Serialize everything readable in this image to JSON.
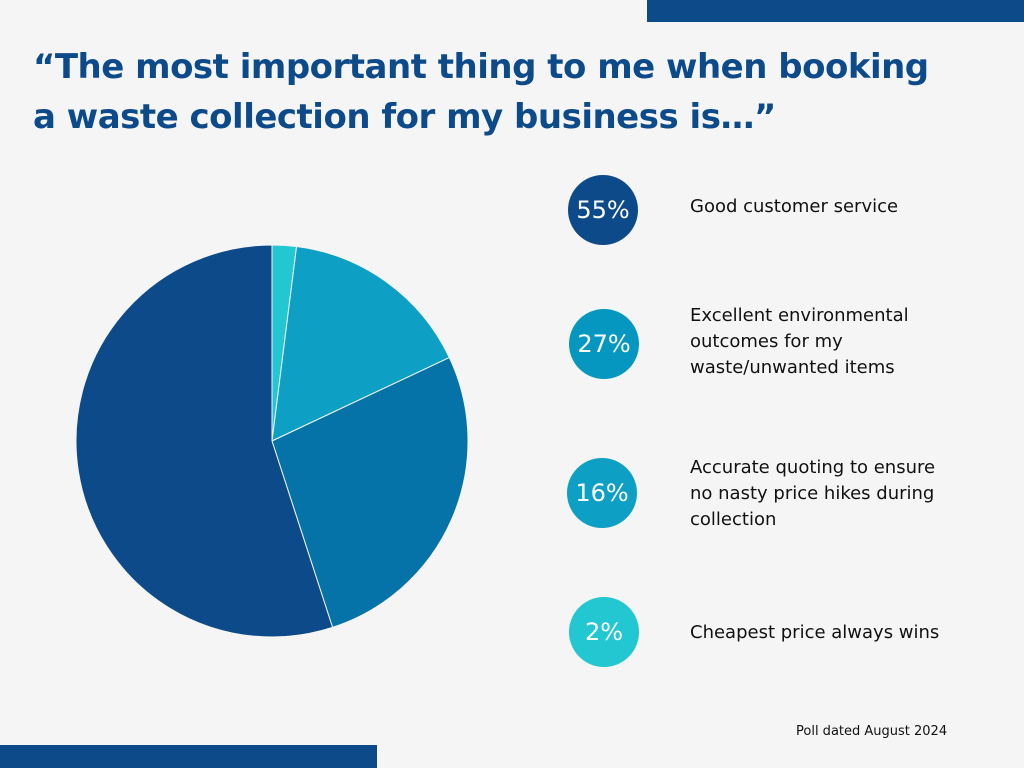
{
  "colors": {
    "title": "#0d4a8a",
    "bars": "#0d4a8a",
    "background": "#f5f5f5"
  },
  "title_lines": [
    "“The most important thing to me when booking",
    "a waste collection for my business is…”"
  ],
  "chart_data": {
    "type": "pie",
    "start_angle_deg": 0,
    "direction": "clockwise",
    "slices": [
      {
        "label": "Cheapest price always wins",
        "value": 2,
        "display_value": "2%",
        "color": "#22c7d1"
      },
      {
        "label": "Accurate quoting to ensure no nasty price hikes during collection",
        "value": 16,
        "display_value": "16%",
        "color": "#0ea0c4"
      },
      {
        "label": "Excellent environmental outcomes for my waste/unwanted items",
        "value": 27,
        "display_value": "27%",
        "color": "#0572a8"
      },
      {
        "label": "Good customer service",
        "value": 55,
        "display_value": "55%",
        "color": "#0d4a8a"
      }
    ]
  },
  "legend": [
    {
      "percent": "55%",
      "lines": [
        "Good customer service"
      ],
      "color": "#0d4a8a"
    },
    {
      "percent": "27%",
      "lines": [
        "Excellent environmental",
        "outcomes for my",
        "waste/unwanted items"
      ],
      "color": "#0597c0"
    },
    {
      "percent": "16%",
      "lines": [
        "Accurate quoting to ensure",
        "no nasty price hikes during",
        "collection"
      ],
      "color": "#0ea0c4"
    },
    {
      "percent": "2%",
      "lines": [
        "Cheapest price always wins"
      ],
      "color": "#22c7d1"
    }
  ],
  "footnote": "Poll dated August 2024"
}
